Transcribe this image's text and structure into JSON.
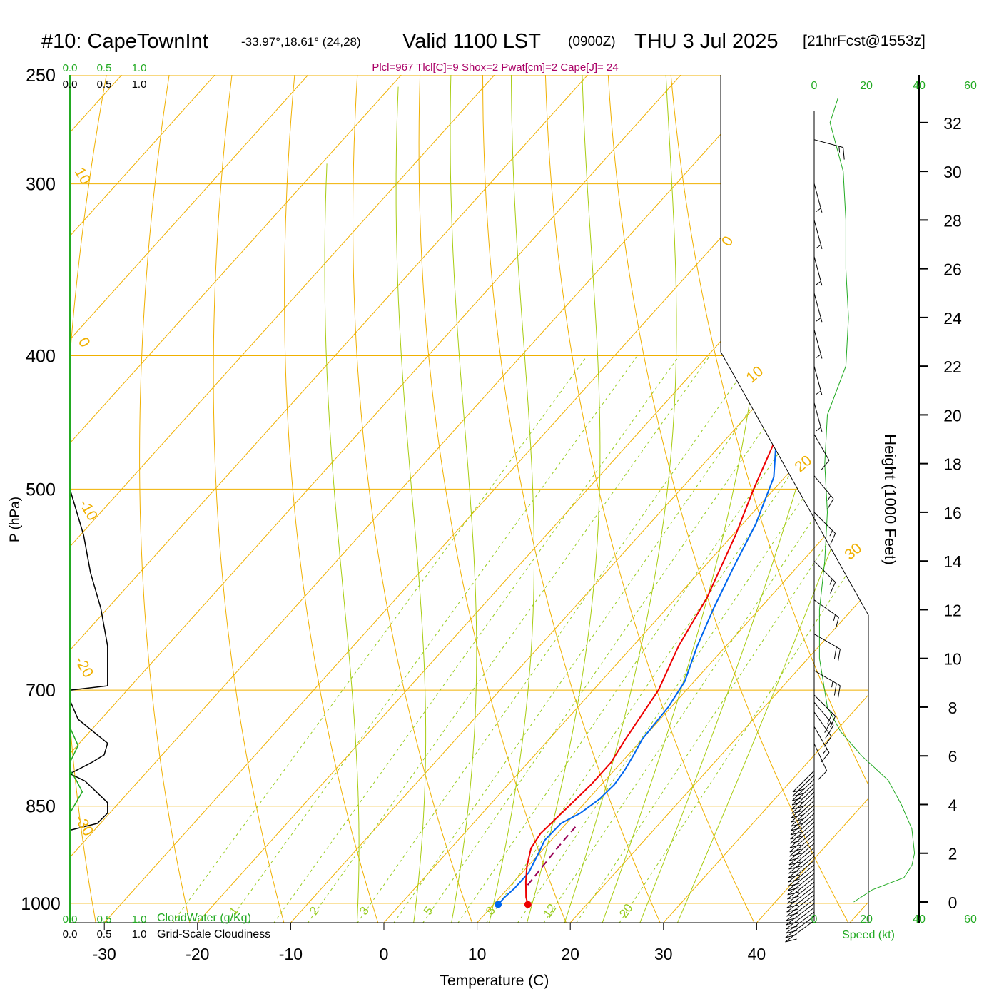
{
  "header": {
    "station": "#10: CapeTownInt",
    "location": "-33.97°,18.61° (24,28)",
    "valid": "Valid 1100 LST",
    "zulu": "(0900Z)",
    "date": "THU 3 Jul 2025",
    "forecast": "[21hrFcst@1553z]",
    "indices": "Plcl=967 Tlcl[C]=9 Shox=2 Pwat[cm]=2 Cape[J]= 24"
  },
  "colors": {
    "isotherm": "#f0b000",
    "dry_adiabat": "#f0b000",
    "moist_adiabat": "#a8cc10",
    "mixing_ratio": "#98cc20",
    "temperature": "#ee0000",
    "dewpoint": "#0066ee",
    "parcel": "#990055",
    "cloud": "#000000",
    "cloudwater": "#22aa22",
    "speed": "#22aa22",
    "barb": "#000000",
    "indices": "#aa0066"
  },
  "chart_data": {
    "type": "skew-t",
    "title": "#10: CapeTownInt",
    "xlabel": "Temperature (C)",
    "ylabel": "P (hPa)",
    "xlim": [
      -33.7,
      36.0
    ],
    "ylim": [
      1033,
      250
    ],
    "x_ticks": [
      "-30",
      "-20",
      "-10",
      "0",
      "10",
      "20",
      "30",
      "40"
    ],
    "x_tick_values": [
      -30,
      -20,
      -10,
      0,
      10,
      20,
      30,
      40
    ],
    "pressure_ticks": [
      "250",
      "300",
      "400",
      "500",
      "700",
      "850",
      "1000"
    ],
    "pressure_values": [
      250,
      300,
      400,
      500,
      700,
      850,
      1000
    ],
    "dry_adiabat_labels": [
      "10",
      "0",
      "-10",
      "-20",
      "-30",
      "0",
      "10",
      "20",
      "30"
    ],
    "mixing_ratio_labels": [
      "1",
      "2",
      "3",
      "5",
      "8",
      "12",
      "20"
    ],
    "temperature": {
      "name": "Temperature",
      "pressure": [
        1002,
        990,
        965,
        940,
        912,
        890,
        860,
        820,
        790,
        760,
        700,
        650,
        600,
        540,
        500,
        450,
        400,
        360,
        340,
        315,
        300,
        280,
        265
      ],
      "values": [
        13.7,
        12.8,
        11.3,
        9.9,
        8.6,
        8.2,
        8.5,
        8.9,
        8.9,
        8.2,
        7.0,
        4.9,
        3.3,
        0.3,
        -2.2,
        -5.3,
        -8.4,
        -11.4,
        -14.3,
        -16.2,
        -16.9,
        -19.6,
        -23.5
      ]
    },
    "dewpoint": {
      "name": "Dewpoint",
      "pressure": [
        1002,
        990,
        975,
        950,
        920,
        900,
        875,
        860,
        840,
        820,
        800,
        780,
        760,
        720,
        690,
        650,
        610,
        570,
        530,
        490,
        465,
        430,
        400,
        370,
        345,
        320,
        300,
        285,
        265
      ],
      "values": [
        10.5,
        10.5,
        10.7,
        10.7,
        9.9,
        9.3,
        9.4,
        10.5,
        11.2,
        11.4,
        11.1,
        10.6,
        10.0,
        9.7,
        9.0,
        6.9,
        5.0,
        3.2,
        1.4,
        -1.2,
        -4.0,
        -7.6,
        -9.9,
        -11.2,
        -13.4,
        -14.4,
        -16.4,
        -21.6,
        -30.3
      ]
    },
    "parcel": {
      "name": "Parcel",
      "pressure": [
        970,
        940,
        910,
        880
      ],
      "values": [
        11.8,
        11.6,
        11.4,
        11.3
      ]
    },
    "wind_speed": {
      "xlabel": "Speed (kt)",
      "x_ticks": [
        "0",
        "20",
        "40",
        "60"
      ],
      "height_ticks": [
        "0",
        "2",
        "4",
        "6",
        "8",
        "10",
        "12",
        "14",
        "16",
        "18",
        "20",
        "22",
        "24",
        "26",
        "28",
        "30",
        "32"
      ],
      "height_label": "Height (1000 Feet)",
      "height_kft": [
        0,
        0.5,
        1,
        1.5,
        2,
        3,
        4,
        5,
        6,
        7,
        8,
        10,
        12,
        14,
        16,
        18,
        20,
        22,
        24,
        26,
        28,
        30,
        32,
        33
      ],
      "speed_kt": [
        15,
        22,
        34,
        37,
        38,
        37,
        33,
        28,
        18,
        10,
        5,
        2,
        2,
        4,
        5,
        4,
        5,
        12,
        13,
        12,
        12,
        11,
        6,
        9
      ]
    },
    "barbs": {
      "height_kft": [
        31.3,
        29.5,
        28,
        26.5,
        25,
        23.5,
        22,
        20.5,
        19.2,
        17.5,
        16,
        14,
        12.4,
        11,
        9.5,
        8.5,
        8.2,
        7.8,
        7.2,
        6.5
      ],
      "speed_kt": [
        15,
        5,
        5,
        5,
        5,
        5,
        5,
        5,
        10,
        15,
        15,
        15,
        15,
        20,
        25,
        20,
        20,
        15,
        15,
        10
      ],
      "from_dir_deg": [
        285,
        345,
        345,
        345,
        345,
        345,
        345,
        345,
        330,
        320,
        315,
        315,
        305,
        300,
        300,
        315,
        320,
        325,
        330,
        335
      ]
    },
    "cloud_panel": {
      "label_cloudwater": "CloudWater (g/Kg)",
      "label_cloudiness": "Grid-Scale Cloudiness",
      "ticks": [
        "0.0",
        "0.5",
        "1.0"
      ],
      "cloudiness": {
        "pressure": [
          500,
          540,
          575,
          610,
          650,
          695,
          700,
          712,
          735,
          765,
          780,
          790,
          805,
          815,
          845,
          860,
          875,
          885,
          890
        ],
        "values": [
          0.0,
          0.2,
          0.3,
          0.45,
          0.55,
          0.55,
          0.0,
          0.0,
          0.12,
          0.55,
          0.5,
          0.32,
          0.0,
          0.22,
          0.55,
          0.55,
          0.4,
          0.0,
          0.0
        ]
      },
      "cloudwater": {
        "pressure": [
          745,
          768,
          790,
          800,
          815,
          830,
          860,
          870
        ],
        "values": [
          0.0,
          0.12,
          0.0,
          0.0,
          0.1,
          0.18,
          0.0,
          0.0
        ]
      }
    }
  }
}
